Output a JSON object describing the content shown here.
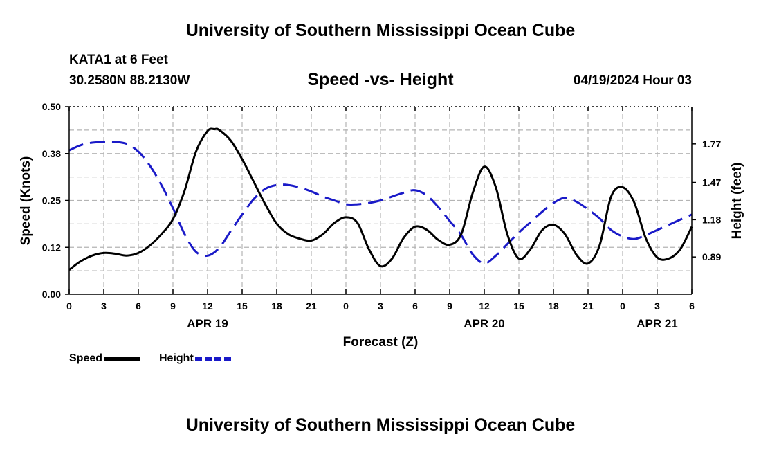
{
  "page": {
    "title_top": "University of Southern Mississippi Ocean Cube",
    "title_bottom": "University of Southern Mississippi Ocean Cube",
    "station": "KATA1 at 6 Feet",
    "coords": "30.2580N  88.2130W",
    "timestamp": "04/19/2024 Hour 03"
  },
  "colors": {
    "speed": "#000000",
    "height": "#1a1ac8",
    "grid": "#b4b4b4"
  },
  "chart_data": {
    "type": "line",
    "title": "Speed -vs- Height",
    "xlabel": "Forecast (Z)",
    "ylabel": "Speed (Knots)",
    "y2label": "Height (feet)",
    "x_range": [
      0,
      54
    ],
    "x_ticks": [
      {
        "x": 0,
        "label": "0"
      },
      {
        "x": 3,
        "label": "3"
      },
      {
        "x": 6,
        "label": "6"
      },
      {
        "x": 9,
        "label": "9"
      },
      {
        "x": 12,
        "label": "12"
      },
      {
        "x": 15,
        "label": "15"
      },
      {
        "x": 18,
        "label": "18"
      },
      {
        "x": 21,
        "label": "21"
      },
      {
        "x": 24,
        "label": "0"
      },
      {
        "x": 27,
        "label": "3"
      },
      {
        "x": 30,
        "label": "6"
      },
      {
        "x": 33,
        "label": "9"
      },
      {
        "x": 36,
        "label": "12"
      },
      {
        "x": 39,
        "label": "15"
      },
      {
        "x": 42,
        "label": "18"
      },
      {
        "x": 45,
        "label": "21"
      },
      {
        "x": 48,
        "label": "0"
      },
      {
        "x": 51,
        "label": "3"
      },
      {
        "x": 54,
        "label": "6"
      }
    ],
    "date_labels": [
      {
        "x": 12,
        "label": "APR 19"
      },
      {
        "x": 36,
        "label": "APR 20"
      },
      {
        "x": 51,
        "label": "APR 21"
      }
    ],
    "ylim": [
      0,
      0.5
    ],
    "y_ticks": [
      {
        "v": 0.0,
        "label": "0.00"
      },
      {
        "v": 0.125,
        "label": "0.12"
      },
      {
        "v": 0.25,
        "label": "0.25"
      },
      {
        "v": 0.375,
        "label": "0.38"
      },
      {
        "v": 0.5,
        "label": "0.50"
      }
    ],
    "y2lim": [
      0.6,
      2.06
    ],
    "y2_ticks": [
      {
        "v": 0.89,
        "label": "0.89"
      },
      {
        "v": 1.18,
        "label": "1.18"
      },
      {
        "v": 1.47,
        "label": "1.47"
      },
      {
        "v": 1.77,
        "label": "1.77"
      }
    ],
    "series": [
      {
        "name": "Speed",
        "axis": "left",
        "style": "solid",
        "x": [
          0,
          1,
          2,
          3,
          4,
          5,
          6,
          7,
          8,
          9,
          10,
          11,
          12,
          12.6,
          13,
          14,
          15,
          16,
          17,
          18,
          19,
          20,
          21,
          22,
          23,
          24,
          25,
          26,
          27,
          28,
          29,
          30,
          31,
          32,
          33,
          34,
          35,
          36,
          37,
          38,
          39,
          40,
          41,
          42,
          43,
          44,
          45,
          46,
          47,
          48,
          49,
          50,
          51,
          52,
          53,
          54
        ],
        "values": [
          0.065,
          0.088,
          0.103,
          0.11,
          0.108,
          0.103,
          0.11,
          0.13,
          0.16,
          0.2,
          0.275,
          0.38,
          0.435,
          0.44,
          0.438,
          0.41,
          0.36,
          0.3,
          0.24,
          0.188,
          0.16,
          0.148,
          0.143,
          0.16,
          0.19,
          0.205,
          0.19,
          0.12,
          0.075,
          0.095,
          0.15,
          0.18,
          0.172,
          0.145,
          0.132,
          0.16,
          0.27,
          0.34,
          0.285,
          0.16,
          0.095,
          0.12,
          0.17,
          0.185,
          0.16,
          0.105,
          0.082,
          0.13,
          0.26,
          0.285,
          0.245,
          0.15,
          0.098,
          0.095,
          0.12,
          0.18
        ]
      },
      {
        "name": "Height",
        "axis": "right",
        "style": "dashed",
        "x": [
          0,
          1,
          2,
          3,
          4,
          5,
          6,
          7,
          8,
          9,
          10,
          11,
          12,
          13,
          14,
          15,
          16,
          17,
          18,
          19,
          20,
          21,
          22,
          23,
          24,
          25,
          26,
          27,
          28,
          29,
          30,
          31,
          32,
          33,
          34,
          35,
          36,
          37,
          38,
          39,
          40,
          41,
          42,
          43,
          44,
          45,
          46,
          47,
          48,
          49,
          50,
          51,
          52,
          53,
          54
        ],
        "values": [
          1.72,
          1.76,
          1.78,
          1.785,
          1.785,
          1.77,
          1.71,
          1.6,
          1.45,
          1.27,
          1.07,
          0.93,
          0.9,
          0.96,
          1.09,
          1.22,
          1.34,
          1.42,
          1.45,
          1.45,
          1.43,
          1.4,
          1.36,
          1.33,
          1.3,
          1.3,
          1.31,
          1.33,
          1.36,
          1.39,
          1.41,
          1.37,
          1.28,
          1.17,
          1.06,
          0.91,
          0.84,
          0.9,
          0.99,
          1.08,
          1.16,
          1.24,
          1.31,
          1.35,
          1.32,
          1.26,
          1.19,
          1.1,
          1.05,
          1.03,
          1.06,
          1.1,
          1.14,
          1.18,
          1.22
        ]
      }
    ]
  }
}
